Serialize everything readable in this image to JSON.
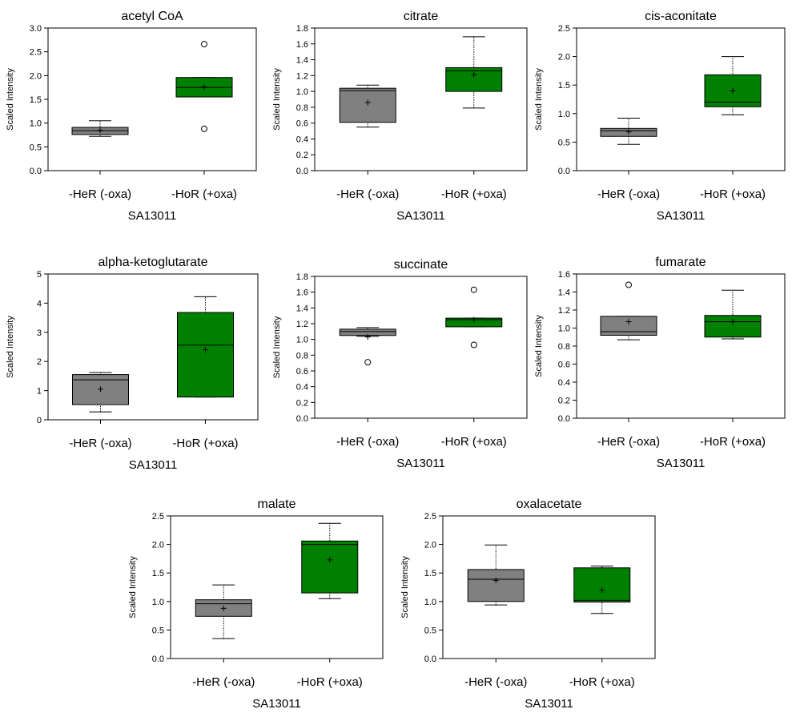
{
  "chart_data": [
    {
      "type": "box",
      "title": "acetyl CoA",
      "xlabel": "SA13011",
      "ylabel": "Scaled Intensity",
      "categories": [
        "-HeR (-oxa)",
        "-HoR (+oxa)"
      ],
      "ylim": [
        0,
        3.0
      ],
      "yticks": [
        "0.0",
        "0.5",
        "1.0",
        "1.5",
        "2.0",
        "2.5",
        "3.0"
      ],
      "boxes": [
        {
          "color": "#808080",
          "whisker_low": 0.72,
          "q1": 0.76,
          "median": 0.84,
          "q3": 0.91,
          "whisker_high": 1.05,
          "mean": 0.85,
          "outliers": []
        },
        {
          "color": "#008000",
          "whisker_low": 1.55,
          "q1": 1.55,
          "median": 1.75,
          "q3": 1.96,
          "whisker_high": 1.96,
          "mean": 1.76,
          "outliers": [
            2.66,
            0.88
          ]
        }
      ]
    },
    {
      "type": "box",
      "title": "citrate",
      "xlabel": "SA13011",
      "ylabel": "Scaled Intensity",
      "categories": [
        "-HeR (-oxa)",
        "-HoR (+oxa)"
      ],
      "ylim": [
        0,
        1.8
      ],
      "yticks": [
        "0.0",
        "0.2",
        "0.4",
        "0.6",
        "0.8",
        "1.0",
        "1.2",
        "1.4",
        "1.6",
        "1.8"
      ],
      "boxes": [
        {
          "color": "#808080",
          "whisker_low": 0.55,
          "q1": 0.61,
          "median": 1.01,
          "q3": 1.04,
          "whisker_high": 1.08,
          "mean": 0.86,
          "outliers": []
        },
        {
          "color": "#008000",
          "whisker_low": 0.79,
          "q1": 1.0,
          "median": 1.26,
          "q3": 1.3,
          "whisker_high": 1.69,
          "mean": 1.21,
          "outliers": []
        }
      ]
    },
    {
      "type": "box",
      "title": "cis-aconitate",
      "xlabel": "SA13011",
      "ylabel": "Scaled Intensity",
      "categories": [
        "-HeR (-oxa)",
        "-HoR (+oxa)"
      ],
      "ylim": [
        0,
        2.5
      ],
      "yticks": [
        "0.0",
        "0.5",
        "1.0",
        "1.5",
        "2.0",
        "2.5"
      ],
      "boxes": [
        {
          "color": "#808080",
          "whisker_low": 0.46,
          "q1": 0.6,
          "median": 0.7,
          "q3": 0.74,
          "whisker_high": 0.92,
          "mean": 0.68,
          "outliers": []
        },
        {
          "color": "#008000",
          "whisker_low": 0.98,
          "q1": 1.12,
          "median": 1.2,
          "q3": 1.68,
          "whisker_high": 2.0,
          "mean": 1.4,
          "outliers": []
        }
      ]
    },
    {
      "type": "box",
      "title": "alpha-ketoglutarate",
      "xlabel": "SA13011",
      "ylabel": "Scaled Intensity",
      "categories": [
        "-HeR (-oxa)",
        "-HoR (+oxa)"
      ],
      "ylim": [
        0,
        5
      ],
      "yticks": [
        "0",
        "1",
        "2",
        "3",
        "4",
        "5"
      ],
      "boxes": [
        {
          "color": "#808080",
          "whisker_low": 0.27,
          "q1": 0.52,
          "median": 1.37,
          "q3": 1.55,
          "whisker_high": 1.62,
          "mean": 1.05,
          "outliers": []
        },
        {
          "color": "#008000",
          "whisker_low": 0.78,
          "q1": 0.78,
          "median": 2.56,
          "q3": 3.68,
          "whisker_high": 4.22,
          "mean": 2.4,
          "outliers": []
        }
      ]
    },
    {
      "type": "box",
      "title": "succinate",
      "xlabel": "SA13011",
      "ylabel": "Scaled Intensity",
      "categories": [
        "-HeR (-oxa)",
        "-HoR (+oxa)"
      ],
      "ylim": [
        0,
        1.8
      ],
      "yticks": [
        "0.0",
        "0.2",
        "0.4",
        "0.6",
        "0.8",
        "1.0",
        "1.2",
        "1.4",
        "1.6",
        "1.8"
      ],
      "boxes": [
        {
          "color": "#808080",
          "whisker_low": 1.04,
          "q1": 1.05,
          "median": 1.1,
          "q3": 1.13,
          "whisker_high": 1.15,
          "mean": 1.03,
          "outliers": [
            0.71
          ]
        },
        {
          "color": "#008000",
          "whisker_low": 1.16,
          "q1": 1.16,
          "median": 1.25,
          "q3": 1.27,
          "whisker_high": 1.27,
          "mean": 1.25,
          "outliers": [
            1.63,
            0.93
          ]
        }
      ]
    },
    {
      "type": "box",
      "title": "fumarate",
      "xlabel": "SA13011",
      "ylabel": "Scaled Intensity",
      "categories": [
        "-HeR (-oxa)",
        "-HoR (+oxa)"
      ],
      "ylim": [
        0,
        1.6
      ],
      "yticks": [
        "0.0",
        "0.2",
        "0.4",
        "0.6",
        "0.8",
        "1.0",
        "1.2",
        "1.4",
        "1.6"
      ],
      "boxes": [
        {
          "color": "#808080",
          "whisker_low": 0.87,
          "q1": 0.92,
          "median": 0.96,
          "q3": 1.13,
          "whisker_high": 1.13,
          "mean": 1.07,
          "outliers": [
            1.48
          ]
        },
        {
          "color": "#008000",
          "whisker_low": 0.88,
          "q1": 0.9,
          "median": 1.07,
          "q3": 1.14,
          "whisker_high": 1.42,
          "mean": 1.07,
          "outliers": []
        }
      ]
    },
    {
      "type": "box",
      "title": "malate",
      "xlabel": "SA13011",
      "ylabel": "Scaled Intensity",
      "categories": [
        "-HeR (-oxa)",
        "-HoR (+oxa)"
      ],
      "ylim": [
        0,
        2.5
      ],
      "yticks": [
        "0.0",
        "0.5",
        "1.0",
        "1.5",
        "2.0",
        "2.5"
      ],
      "boxes": [
        {
          "color": "#808080",
          "whisker_low": 0.35,
          "q1": 0.74,
          "median": 0.96,
          "q3": 1.03,
          "whisker_high": 1.29,
          "mean": 0.88,
          "outliers": []
        },
        {
          "color": "#008000",
          "whisker_low": 1.05,
          "q1": 1.15,
          "median": 2.0,
          "q3": 2.06,
          "whisker_high": 2.37,
          "mean": 1.73,
          "outliers": []
        }
      ]
    },
    {
      "type": "box",
      "title": "oxalacetate",
      "xlabel": "SA13011",
      "ylabel": "Scaled Intensity",
      "categories": [
        "-HeR (-oxa)",
        "-HoR (+oxa)"
      ],
      "ylim": [
        0,
        2.5
      ],
      "yticks": [
        "0.0",
        "0.5",
        "1.0",
        "1.5",
        "2.0",
        "2.5"
      ],
      "boxes": [
        {
          "color": "#808080",
          "whisker_low": 0.94,
          "q1": 1.0,
          "median": 1.39,
          "q3": 1.56,
          "whisker_high": 1.99,
          "mean": 1.37,
          "outliers": []
        },
        {
          "color": "#008000",
          "whisker_low": 0.79,
          "q1": 0.99,
          "median": 1.02,
          "q3": 1.59,
          "whisker_high": 1.62,
          "mean": 1.2,
          "outliers": []
        }
      ]
    }
  ]
}
